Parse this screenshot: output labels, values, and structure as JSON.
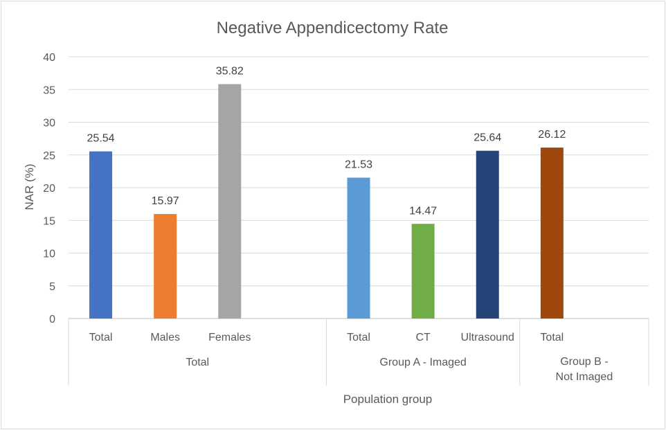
{
  "chart_data": {
    "type": "bar",
    "title": "Negative Appendicectomy Rate",
    "xlabel": "Population group",
    "ylabel": "NAR (%)",
    "ylim": [
      0,
      40
    ],
    "yticks": [
      0,
      5,
      10,
      15,
      20,
      25,
      30,
      35,
      40
    ],
    "grid": true,
    "bars": [
      {
        "category": "Total",
        "group": "Total",
        "value": 25.54,
        "label": "25.54",
        "color": "#4472c4"
      },
      {
        "category": "Males",
        "group": "Total",
        "value": 15.97,
        "label": "15.97",
        "color": "#ed7d31"
      },
      {
        "category": "Females",
        "group": "Total",
        "value": 35.82,
        "label": "35.82",
        "color": "#a5a5a5"
      },
      {
        "category": "Total",
        "group": "Group A - Imaged",
        "value": 21.53,
        "label": "21.53",
        "color": "#5b9bd5"
      },
      {
        "category": "CT",
        "group": "Group A - Imaged",
        "value": 14.47,
        "label": "14.47",
        "color": "#70ad47"
      },
      {
        "category": "Ultrasound",
        "group": "Group A - Imaged",
        "value": 25.64,
        "label": "25.64",
        "color": "#264478"
      },
      {
        "category": "Total",
        "group": "Group B - Not Imaged",
        "value": 26.12,
        "label": "26.12",
        "color": "#9e480e"
      }
    ],
    "groups": [
      {
        "lines": [
          "Total"
        ]
      },
      {
        "lines": [
          "Group A - Imaged"
        ]
      },
      {
        "lines": [
          "Group B -",
          "Not Imaged"
        ]
      }
    ]
  }
}
